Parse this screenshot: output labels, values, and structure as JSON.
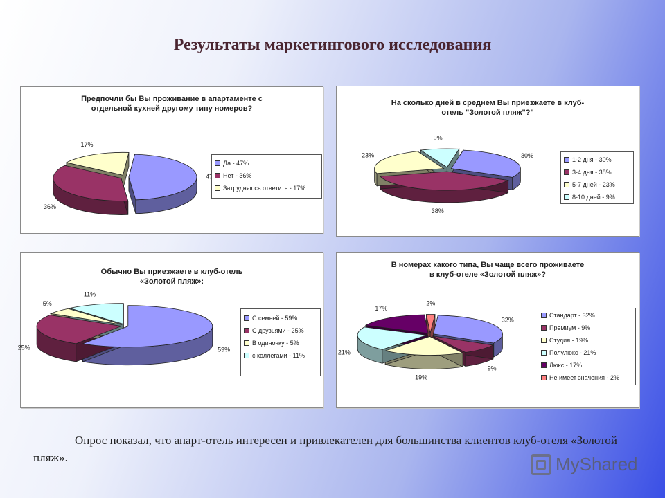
{
  "slide": {
    "title": "Результаты маркетингового исследования",
    "conclusion": "Опрос показал, что апарт-отель интересен и привлекателен для большинства клиентов клуб-отеля «Золотой пляж».",
    "watermark": "MyShared"
  },
  "chart_data": [
    {
      "type": "pie",
      "title_lines": [
        "Предпочли бы Вы проживание в апартаменте с",
        "отдельной кухней другому типу номеров?"
      ],
      "slices": [
        {
          "label": "Да - 47%",
          "value": 47,
          "data_label": "47%",
          "color": "#9999ff"
        },
        {
          "label": "Нет - 36%",
          "value": 36,
          "data_label": "36%",
          "color": "#993366"
        },
        {
          "label": "Затрудняюсь ответить - 17%",
          "value": 17,
          "data_label": "17%",
          "color": "#ffffcc"
        }
      ],
      "legend_placement": "right"
    },
    {
      "type": "pie",
      "title_lines": [
        "На сколько дней в среднем Вы приезжаете в клуб-",
        "отель \"Золотой пляж\"?\""
      ],
      "slices": [
        {
          "label": "1-2 дня - 30%",
          "value": 30,
          "data_label": "30%",
          "color": "#9999ff"
        },
        {
          "label": "3-4 дня - 38%",
          "value": 38,
          "data_label": "38%",
          "color": "#993366"
        },
        {
          "label": "5-7 дней - 23%",
          "value": 23,
          "data_label": "23%",
          "color": "#ffffcc"
        },
        {
          "label": "8-10 дней - 9%",
          "value": 9,
          "data_label": "9%",
          "color": "#ccffff"
        }
      ],
      "legend_placement": "right"
    },
    {
      "type": "pie",
      "title_lines": [
        "Обычно Вы приезжаете в клуб-отель",
        "«Золотой пляж»:"
      ],
      "slices": [
        {
          "label": "С семьей - 59%",
          "value": 59,
          "data_label": "59%",
          "color": "#9999ff"
        },
        {
          "label": "С друзьями - 25%",
          "value": 25,
          "data_label": "25%",
          "color": "#993366"
        },
        {
          "label": "В одиночку - 5%",
          "value": 5,
          "data_label": "5%",
          "color": "#ffffcc"
        },
        {
          "label": "с коллегами - 11%",
          "value": 11,
          "data_label": "11%",
          "color": "#ccffff"
        }
      ],
      "legend_placement": "right"
    },
    {
      "type": "pie",
      "title_lines": [
        "В номерах какого типа, Вы чаще всего проживаете",
        "в клуб-отеле «Золотой пляж»?"
      ],
      "slices": [
        {
          "label": "Стандарт - 32%",
          "value": 32,
          "data_label": "32%",
          "color": "#9999ff"
        },
        {
          "label": "Премиум - 9%",
          "value": 9,
          "data_label": "9%",
          "color": "#993366"
        },
        {
          "label": "Студия - 19%",
          "value": 19,
          "data_label": "19%",
          "color": "#ffffcc"
        },
        {
          "label": "Полулюкс - 21%",
          "value": 21,
          "data_label": "21%",
          "color": "#ccffff"
        },
        {
          "label": "Люкс - 17%",
          "value": 17,
          "data_label": "17%",
          "color": "#660066"
        },
        {
          "label": "Не имеет значения - 2%",
          "value": 2,
          "data_label": "2%",
          "color": "#ff8080"
        }
      ],
      "legend_placement": "right"
    }
  ]
}
